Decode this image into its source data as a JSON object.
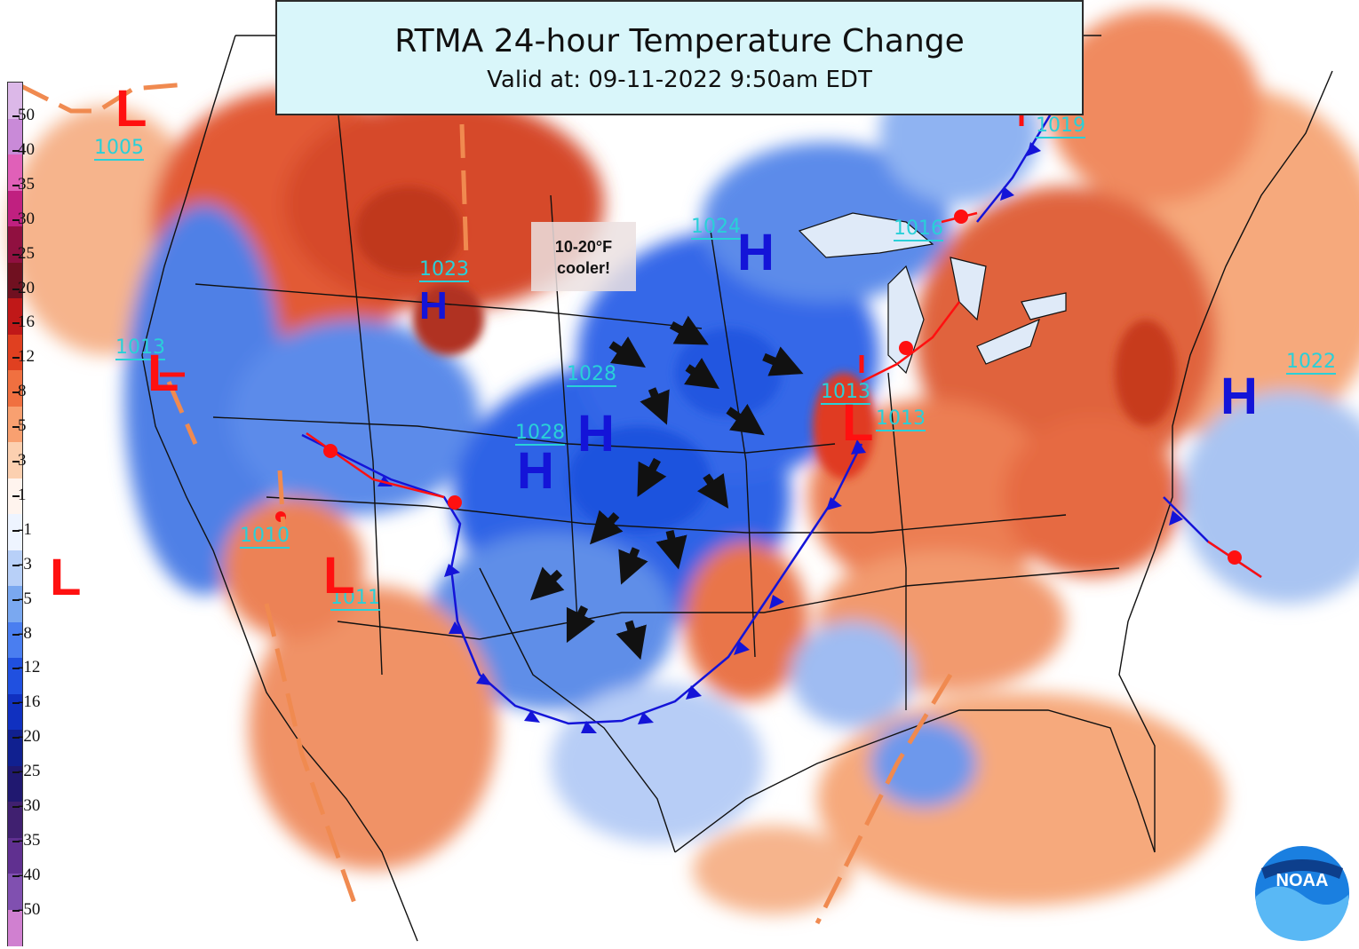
{
  "title": {
    "main": "RTMA 24-hour Temperature Change",
    "valid": "Valid at: 09-11-2022 9:50am EDT"
  },
  "callout": {
    "line1": "10-20°F",
    "line2": "cooler!"
  },
  "legend": {
    "labels": [
      "50",
      "40",
      "35",
      "30",
      "25",
      "20",
      "16",
      "12",
      "8",
      "5",
      "3",
      "1",
      "-1",
      "-3",
      "-5",
      "-8",
      "-12",
      "-16",
      "-20",
      "-25",
      "-30",
      "-35",
      "-40",
      "-50"
    ],
    "colors": [
      "#dcb8e8",
      "#c98ad8",
      "#e060b8",
      "#c02080",
      "#901040",
      "#701020",
      "#c01818",
      "#e04020",
      "#f07040",
      "#f8a070",
      "#fcd0b0",
      "#fff4ee",
      "#eef4ff",
      "#b8d0f8",
      "#7aa8f0",
      "#4a7ef0",
      "#2050e0",
      "#1030c0",
      "#102090",
      "#201870",
      "#402070",
      "#603090",
      "#8050b0",
      "#d080d0"
    ]
  },
  "pressure_labels": [
    "1005",
    "1023",
    "1013",
    "1010",
    "1011",
    "1028",
    "1028",
    "1024",
    "1016",
    "1019",
    "1013",
    "1013",
    "1022"
  ],
  "systems": {
    "H": [
      "H",
      "H",
      "H",
      "H",
      "H"
    ],
    "L": [
      "L",
      "L",
      "L",
      "L",
      "L"
    ]
  },
  "logo": {
    "text": "NOAA"
  },
  "colors": {
    "warm": "#e8603a",
    "warm_light": "#f6a97c",
    "cool": "#2e6ae8",
    "cool_light": "#8fb3f2",
    "front_cold": "#1414d8",
    "front_warm": "#ff1010",
    "pressure_text": "#29d0d8"
  }
}
